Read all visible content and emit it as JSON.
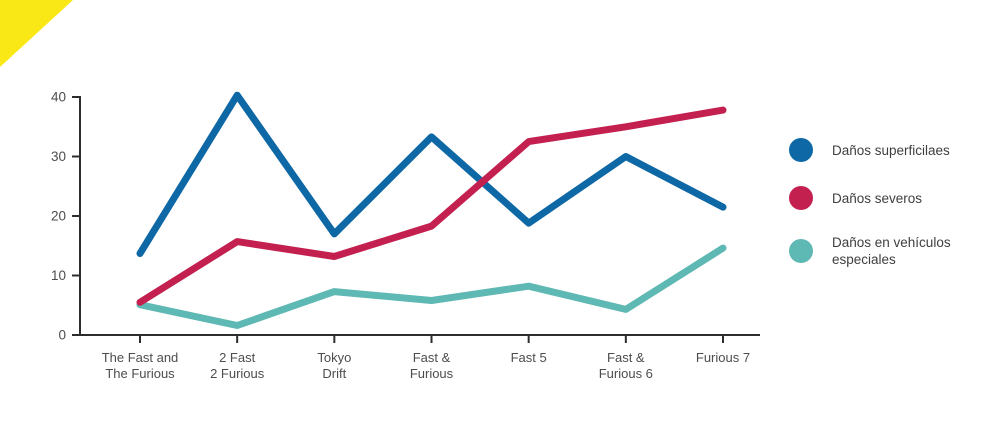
{
  "page": {
    "background_color": "#ffffff",
    "corner_decoration_color": "#f9e716"
  },
  "chart_data": {
    "type": "line",
    "categories": [
      "The Fast and\nThe Furious",
      "2 Fast\n2 Furious",
      "Tokyo\nDrift",
      "Fast &\nFurious",
      "Fast 5",
      "Fast &\nFurious 6",
      "Furious 7"
    ],
    "series": [
      {
        "name": "Daños superficilaes",
        "color": "#0d68a5",
        "values": [
          13.7,
          40.3,
          17.0,
          33.3,
          18.8,
          30.0,
          21.5
        ]
      },
      {
        "name": "Daños severos",
        "color": "#c32050",
        "values": [
          5.5,
          15.7,
          13.2,
          18.3,
          32.5,
          35.0,
          37.8
        ]
      },
      {
        "name": "Daños en vehículos especiales",
        "color": "#5eb8b3",
        "values": [
          5.1,
          1.6,
          7.3,
          5.8,
          8.2,
          4.3,
          14.6
        ]
      }
    ],
    "draw_order": [
      0,
      2,
      1
    ],
    "title": "",
    "xlabel": "",
    "ylabel": "",
    "ylim": [
      0,
      40
    ],
    "yticks": [
      0,
      10,
      20,
      30,
      40
    ],
    "ytick_labels": [
      "0",
      "10",
      "20",
      "30",
      "40"
    ],
    "grid": false,
    "legend_position": "right"
  },
  "legend": {
    "items": [
      {
        "label": "Daños superficilaes",
        "color": "#0d68a5"
      },
      {
        "label": "Daños severos",
        "color": "#c32050"
      },
      {
        "label": "Daños en vehículos\nespeciales",
        "color": "#5eb8b3"
      }
    ]
  },
  "axis": {
    "line_color": "#2d2d2d",
    "tick_label_color": "#4d4d4d"
  }
}
